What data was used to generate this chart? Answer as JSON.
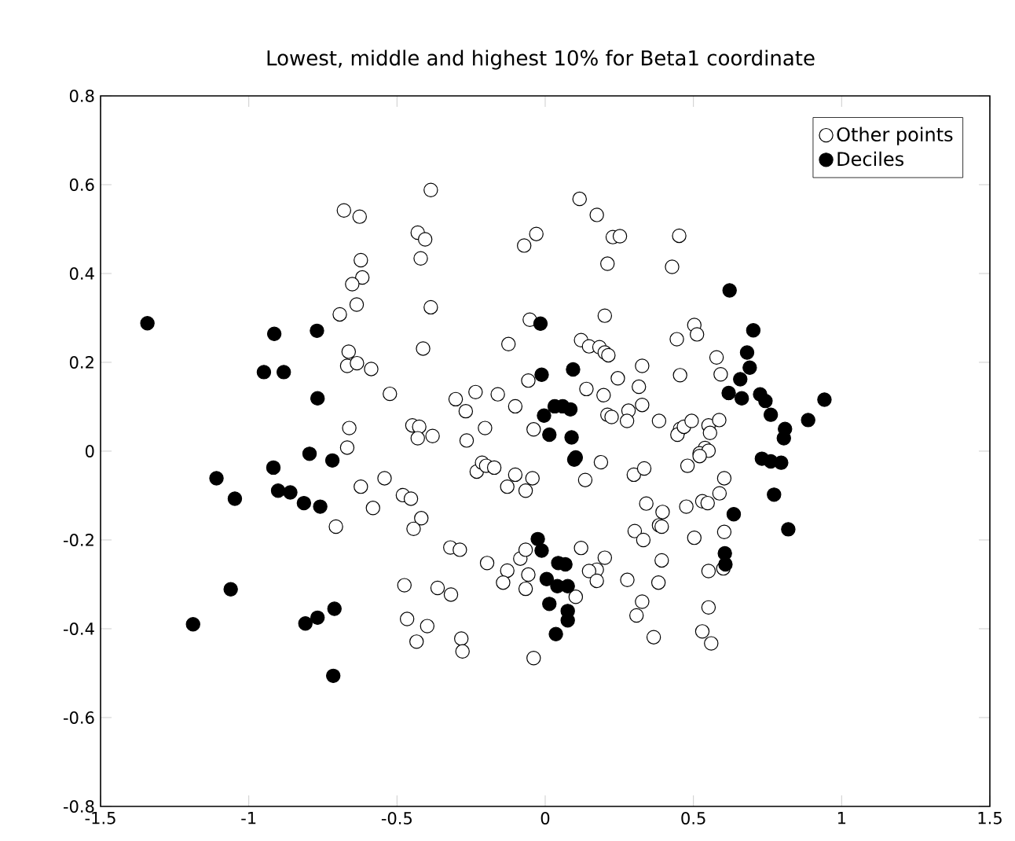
{
  "chart_data": {
    "type": "scatter",
    "title": "Lowest, middle and highest 10% for Beta1 coordinate",
    "xlim": [
      -1.5,
      1.5
    ],
    "ylim": [
      -0.8,
      0.8
    ],
    "xticks": [
      -1.5,
      -1,
      -0.5,
      0,
      0.5,
      1,
      1.5
    ],
    "yticks": [
      -0.8,
      -0.6,
      -0.4,
      -0.2,
      0,
      0.2,
      0.4,
      0.6,
      0.8
    ],
    "legend": "top right",
    "grid": false,
    "series": [
      {
        "name": "Other points",
        "color": "#ffffff",
        "x": [
          -0.679,
          -0.626,
          -0.622,
          -0.617,
          -0.651,
          -0.636,
          -0.693,
          -0.663,
          -0.668,
          -0.635,
          -0.587,
          -0.524,
          -0.661,
          -0.668,
          -0.386,
          -0.43,
          -0.405,
          -0.42,
          -0.386,
          -0.412,
          -0.448,
          -0.425,
          -0.43,
          -0.38,
          -0.302,
          -0.268,
          -0.235,
          -0.16,
          -0.124,
          -0.101,
          -0.203,
          -0.265,
          -0.071,
          -0.03,
          -0.052,
          -0.057,
          -0.039,
          -0.622,
          -0.542,
          -0.581,
          -0.48,
          -0.453,
          -0.706,
          -0.418,
          -0.444,
          -0.32,
          -0.288,
          -0.196,
          -0.128,
          -0.084,
          -0.066,
          -0.142,
          -0.066,
          -0.057,
          -0.475,
          -0.363,
          -0.318,
          -0.466,
          -0.398,
          -0.434,
          -0.283,
          -0.279,
          -0.039,
          -0.231,
          -0.213,
          -0.199,
          -0.172,
          -0.128,
          -0.101,
          -0.066,
          -0.043,
          0.116,
          0.174,
          0.228,
          0.252,
          0.21,
          0.452,
          0.428,
          0.201,
          0.121,
          0.148,
          0.183,
          0.201,
          0.213,
          0.444,
          0.503,
          0.512,
          0.578,
          0.592,
          0.327,
          0.455,
          0.245,
          0.316,
          0.197,
          0.139,
          0.327,
          0.281,
          0.276,
          0.21,
          0.224,
          0.384,
          0.455,
          0.446,
          0.468,
          0.494,
          0.551,
          0.556,
          0.587,
          0.539,
          0.521,
          0.551,
          0.188,
          0.135,
          0.299,
          0.334,
          0.48,
          0.521,
          0.604,
          0.588,
          0.476,
          0.53,
          0.548,
          0.341,
          0.396,
          0.384,
          0.393,
          0.302,
          0.331,
          0.503,
          0.604,
          0.393,
          0.551,
          0.601,
          0.121,
          0.201,
          0.174,
          0.148,
          0.174,
          0.103,
          0.277,
          0.382,
          0.327,
          0.308,
          0.551,
          0.53,
          0.56,
          0.366
        ],
        "values": [
          0.542,
          0.528,
          0.43,
          0.391,
          0.376,
          0.33,
          0.308,
          0.224,
          0.192,
          0.198,
          0.185,
          0.129,
          0.052,
          0.008,
          0.588,
          0.492,
          0.477,
          0.434,
          0.324,
          0.231,
          0.058,
          0.055,
          0.029,
          0.034,
          0.117,
          0.09,
          0.133,
          0.128,
          0.241,
          0.101,
          0.052,
          0.024,
          0.463,
          0.489,
          0.296,
          0.159,
          0.049,
          -0.08,
          -0.061,
          -0.128,
          -0.099,
          -0.107,
          -0.17,
          -0.151,
          -0.175,
          -0.217,
          -0.222,
          -0.252,
          -0.269,
          -0.242,
          -0.222,
          -0.296,
          -0.31,
          -0.278,
          -0.302,
          -0.308,
          -0.323,
          -0.378,
          -0.394,
          -0.429,
          -0.422,
          -0.451,
          -0.466,
          -0.046,
          -0.026,
          -0.033,
          -0.037,
          -0.08,
          -0.053,
          -0.089,
          -0.061,
          0.568,
          0.532,
          0.482,
          0.484,
          0.422,
          0.485,
          0.415,
          0.305,
          0.25,
          0.236,
          0.234,
          0.222,
          0.216,
          0.252,
          0.284,
          0.263,
          0.211,
          0.173,
          0.192,
          0.171,
          0.164,
          0.145,
          0.126,
          0.14,
          0.104,
          0.091,
          0.068,
          0.082,
          0.077,
          0.068,
          0.05,
          0.037,
          0.055,
          0.068,
          0.058,
          0.041,
          0.07,
          0.007,
          -0.005,
          0.001,
          -0.025,
          -0.065,
          -0.053,
          -0.039,
          -0.033,
          -0.011,
          -0.061,
          -0.095,
          -0.125,
          -0.113,
          -0.117,
          -0.118,
          -0.137,
          -0.167,
          -0.17,
          -0.18,
          -0.2,
          -0.195,
          -0.182,
          -0.246,
          -0.27,
          -0.264,
          -0.218,
          -0.24,
          -0.267,
          -0.27,
          -0.292,
          -0.328,
          -0.29,
          -0.296,
          -0.339,
          -0.37,
          -0.352,
          -0.406,
          -0.433,
          -0.419
        ]
      },
      {
        "name": "Deciles",
        "color": "#000000",
        "x": [
          -1.342,
          -0.914,
          -0.949,
          -0.882,
          -0.77,
          -0.768,
          -0.795,
          -0.718,
          -1.109,
          -1.047,
          -0.917,
          -0.901,
          -0.86,
          -0.814,
          -0.759,
          -1.061,
          -1.188,
          -0.809,
          -0.768,
          -0.711,
          -0.715,
          -0.016,
          -0.012,
          0.094,
          -0.004,
          0.032,
          0.059,
          0.085,
          0.014,
          0.089,
          0.103,
          0.622,
          0.702,
          0.681,
          0.69,
          0.658,
          0.619,
          0.663,
          0.725,
          0.743,
          0.761,
          0.809,
          0.805,
          0.887,
          0.942,
          0.731,
          0.761,
          0.796,
          0.772,
          0.82,
          0.636,
          0.606,
          0.608,
          0.098,
          -0.025,
          -0.012,
          0.005,
          0.044,
          0.068,
          0.041,
          0.076,
          0.014,
          0.076,
          0.076,
          0.036
        ],
        "values": [
          0.288,
          0.264,
          0.178,
          0.178,
          0.271,
          0.119,
          -0.006,
          -0.021,
          -0.061,
          -0.107,
          -0.037,
          -0.089,
          -0.093,
          -0.117,
          -0.125,
          -0.311,
          -0.39,
          -0.388,
          -0.375,
          -0.355,
          -0.506,
          0.287,
          0.172,
          0.184,
          0.08,
          0.101,
          0.101,
          0.094,
          0.037,
          0.031,
          -0.014,
          0.362,
          0.272,
          0.222,
          0.188,
          0.162,
          0.131,
          0.119,
          0.128,
          0.113,
          0.082,
          0.05,
          0.029,
          0.07,
          0.116,
          -0.017,
          -0.023,
          -0.026,
          -0.098,
          -0.176,
          -0.142,
          -0.23,
          -0.255,
          -0.019,
          -0.198,
          -0.224,
          -0.288,
          -0.252,
          -0.255,
          -0.304,
          -0.304,
          -0.344,
          -0.36,
          -0.381,
          -0.412
        ]
      }
    ]
  }
}
